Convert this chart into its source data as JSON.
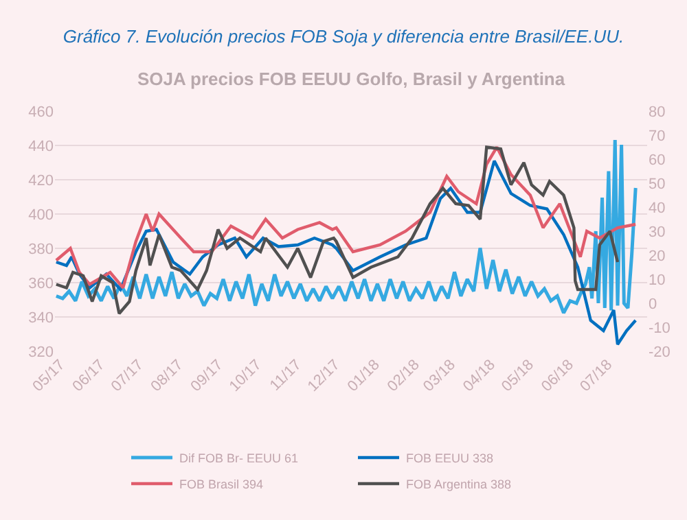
{
  "chart_data": {
    "type": "line",
    "title": "Gráfico 7. Evolución precios FOB Soja y diferencia entre Brasil/EE.UU.",
    "subtitle": "SOJA precios FOB EEUU Golfo, Brasil y Argentina",
    "xlim": [
      "2017-04-27",
      "2018-08-01"
    ],
    "xticks": [
      {
        "value": "2017-05-01",
        "label": "05/17"
      },
      {
        "value": "2017-06-01",
        "label": "06/17"
      },
      {
        "value": "2017-07-01",
        "label": "07/17"
      },
      {
        "value": "2017-08-01",
        "label": "08/17"
      },
      {
        "value": "2017-09-01",
        "label": "09/17"
      },
      {
        "value": "2017-10-01",
        "label": "10/17"
      },
      {
        "value": "2017-11-01",
        "label": "11/17"
      },
      {
        "value": "2017-12-01",
        "label": "12/17"
      },
      {
        "value": "2018-01-01",
        "label": "01/18"
      },
      {
        "value": "2018-02-01",
        "label": "02/18"
      },
      {
        "value": "2018-03-01",
        "label": "03/18"
      },
      {
        "value": "2018-04-01",
        "label": "04/18"
      },
      {
        "value": "2018-05-01",
        "label": "05/18"
      },
      {
        "value": "2018-06-01",
        "label": "06/18"
      },
      {
        "value": "2018-07-01",
        "label": "07/18"
      }
    ],
    "ylim": [
      320,
      460
    ],
    "yticks": [
      320,
      340,
      360,
      380,
      400,
      420,
      440,
      460
    ],
    "y2lim": [
      -20,
      80
    ],
    "y2ticks": [
      -20,
      -10,
      0,
      10,
      20,
      30,
      40,
      50,
      60,
      70,
      80
    ],
    "grid": "y",
    "legend": "bottom",
    "series": [
      {
        "name": "Dif FOB Br- EEUU 61",
        "color": "#35a9e1",
        "axis": "y2",
        "x": [
          "2017-04-28",
          "2017-05-03",
          "2017-05-08",
          "2017-05-13",
          "2017-05-18",
          "2017-05-23",
          "2017-05-28",
          "2017-06-02",
          "2017-06-07",
          "2017-06-12",
          "2017-06-17",
          "2017-06-22",
          "2017-06-27",
          "2017-07-02",
          "2017-07-07",
          "2017-07-12",
          "2017-07-17",
          "2017-07-22",
          "2017-07-27",
          "2017-08-01",
          "2017-08-06",
          "2017-08-11",
          "2017-08-16",
          "2017-08-21",
          "2017-08-26",
          "2017-08-31",
          "2017-09-05",
          "2017-09-10",
          "2017-09-15",
          "2017-09-20",
          "2017-09-25",
          "2017-09-30",
          "2017-10-05",
          "2017-10-10",
          "2017-10-15",
          "2017-10-20",
          "2017-10-25",
          "2017-10-30",
          "2017-11-04",
          "2017-11-09",
          "2017-11-14",
          "2017-11-19",
          "2017-11-24",
          "2017-11-29",
          "2017-12-04",
          "2017-12-09",
          "2017-12-14",
          "2017-12-19",
          "2017-12-24",
          "2017-12-29",
          "2018-01-03",
          "2018-01-08",
          "2018-01-13",
          "2018-01-18",
          "2018-01-23",
          "2018-01-28",
          "2018-02-02",
          "2018-02-07",
          "2018-02-12",
          "2018-02-17",
          "2018-02-22",
          "2018-02-27",
          "2018-03-04",
          "2018-03-09",
          "2018-03-14",
          "2018-03-19",
          "2018-03-24",
          "2018-03-29",
          "2018-04-03",
          "2018-04-08",
          "2018-04-13",
          "2018-04-18",
          "2018-04-23",
          "2018-04-28",
          "2018-05-03",
          "2018-05-08",
          "2018-05-13",
          "2018-05-18",
          "2018-05-23",
          "2018-05-28",
          "2018-06-02",
          "2018-06-07",
          "2018-06-11",
          "2018-06-14",
          "2018-06-17",
          "2018-06-19",
          "2018-06-22",
          "2018-06-24",
          "2018-06-27",
          "2018-06-29",
          "2018-07-02",
          "2018-07-04",
          "2018-07-07",
          "2018-07-09",
          "2018-07-12",
          "2018-07-14",
          "2018-07-17",
          "2018-07-20",
          "2018-07-23"
        ],
        "values": [
          3,
          2,
          5,
          1,
          9,
          3,
          6,
          1,
          7,
          2,
          8,
          3,
          11,
          2,
          12,
          2,
          11,
          3,
          13,
          2,
          8,
          3,
          5,
          -1,
          4,
          2,
          10,
          1,
          9,
          2,
          12,
          -1,
          8,
          1,
          12,
          3,
          9,
          2,
          8,
          1,
          6,
          1,
          7,
          2,
          7,
          1,
          9,
          2,
          10,
          1,
          8,
          1,
          10,
          2,
          9,
          1,
          6,
          2,
          9,
          1,
          7,
          2,
          13,
          3,
          10,
          5,
          23,
          6,
          18,
          5,
          14,
          4,
          11,
          3,
          9,
          3,
          6,
          1,
          3,
          -4,
          1,
          0,
          5,
          8,
          15,
          2,
          30,
          0,
          44,
          -2,
          55,
          -3,
          68,
          -1,
          66,
          0,
          -2,
          20,
          48
        ]
      },
      {
        "name": "FOB EEUU 338",
        "color": "#0070c0",
        "x": [
          "2017-04-28",
          "2017-05-06",
          "2017-05-10",
          "2017-05-16",
          "2017-05-24",
          "2017-06-06",
          "2017-06-17",
          "2017-06-29",
          "2017-07-07",
          "2017-07-15",
          "2017-07-28",
          "2017-08-10",
          "2017-08-20",
          "2017-09-01",
          "2017-09-14",
          "2017-09-23",
          "2017-10-06",
          "2017-10-18",
          "2017-11-02",
          "2017-11-15",
          "2017-11-29",
          "2017-12-02",
          "2017-12-15",
          "2018-01-05",
          "2018-01-25",
          "2018-02-10",
          "2018-02-21",
          "2018-03-01",
          "2018-03-14",
          "2018-03-24",
          "2018-04-04",
          "2018-04-17",
          "2018-05-02",
          "2018-05-15",
          "2018-05-28",
          "2018-06-08",
          "2018-06-18",
          "2018-06-28",
          "2018-07-06",
          "2018-07-09",
          "2018-07-16",
          "2018-07-23"
        ],
        "values": [
          372,
          370,
          375,
          365,
          357,
          365,
          356,
          378,
          390,
          391,
          372,
          365,
          375,
          382,
          386,
          375,
          386,
          381,
          382,
          386,
          382,
          380,
          367,
          375,
          382,
          386,
          409,
          415,
          401,
          401,
          431,
          412,
          405,
          403,
          388,
          369,
          338,
          332,
          344,
          324,
          332,
          338
        ]
      },
      {
        "name": "FOB Brasil 394",
        "color": "#e05c6c",
        "x": [
          "2017-04-28",
          "2017-05-09",
          "2017-05-16",
          "2017-05-24",
          "2017-06-09",
          "2017-06-19",
          "2017-06-29",
          "2017-07-07",
          "2017-07-12",
          "2017-07-17",
          "2017-08-03",
          "2017-08-13",
          "2017-08-27",
          "2017-09-11",
          "2017-09-28",
          "2017-10-08",
          "2017-10-21",
          "2017-11-02",
          "2017-11-19",
          "2017-11-29",
          "2017-12-02",
          "2017-12-15",
          "2018-01-05",
          "2018-01-25",
          "2018-02-13",
          "2018-02-26",
          "2018-03-07",
          "2018-03-21",
          "2018-03-29",
          "2018-04-06",
          "2018-04-17",
          "2018-05-02",
          "2018-05-12",
          "2018-05-25",
          "2018-06-10",
          "2018-06-15",
          "2018-06-25",
          "2018-07-09",
          "2018-07-23"
        ],
        "values": [
          373,
          380,
          366,
          359,
          366,
          357,
          384,
          400,
          390,
          400,
          386,
          378,
          378,
          393,
          386,
          397,
          386,
          391,
          395,
          391,
          392,
          378,
          382,
          390,
          401,
          422,
          413,
          406,
          429,
          439,
          423,
          411,
          392,
          406,
          375,
          390,
          386,
          392,
          394
        ]
      },
      {
        "name": "FOB Argentina 388",
        "color": "#505050",
        "x": [
          "2017-04-28",
          "2017-05-06",
          "2017-05-11",
          "2017-05-19",
          "2017-05-26",
          "2017-06-02",
          "2017-06-11",
          "2017-06-16",
          "2017-06-24",
          "2017-06-29",
          "2017-07-07",
          "2017-07-10",
          "2017-07-17",
          "2017-07-27",
          "2017-08-03",
          "2017-08-16",
          "2017-08-23",
          "2017-09-01",
          "2017-09-08",
          "2017-09-18",
          "2017-10-04",
          "2017-10-08",
          "2017-10-25",
          "2017-11-02",
          "2017-11-12",
          "2017-11-22",
          "2017-11-30",
          "2017-12-02",
          "2017-12-15",
          "2017-12-29",
          "2018-01-19",
          "2018-01-30",
          "2018-02-13",
          "2018-02-23",
          "2018-03-05",
          "2018-03-15",
          "2018-03-24",
          "2018-03-29",
          "2018-04-09",
          "2018-04-17",
          "2018-04-27",
          "2018-05-03",
          "2018-05-12",
          "2018-05-17",
          "2018-05-28",
          "2018-06-05",
          "2018-06-06",
          "2018-06-08",
          "2018-06-22",
          "2018-06-25",
          "2018-07-03",
          "2018-07-09"
        ],
        "values": [
          359,
          357,
          366,
          364,
          349,
          364,
          360,
          342,
          349,
          367,
          386,
          370,
          388,
          369,
          367,
          356,
          367,
          391,
          380,
          386,
          378,
          386,
          369,
          380,
          363,
          384,
          386,
          384,
          363,
          369,
          375,
          386,
          406,
          415,
          406,
          405,
          397,
          439,
          438,
          417,
          430,
          417,
          411,
          419,
          411,
          392,
          361,
          356,
          356,
          382,
          390,
          372
        ]
      }
    ]
  }
}
